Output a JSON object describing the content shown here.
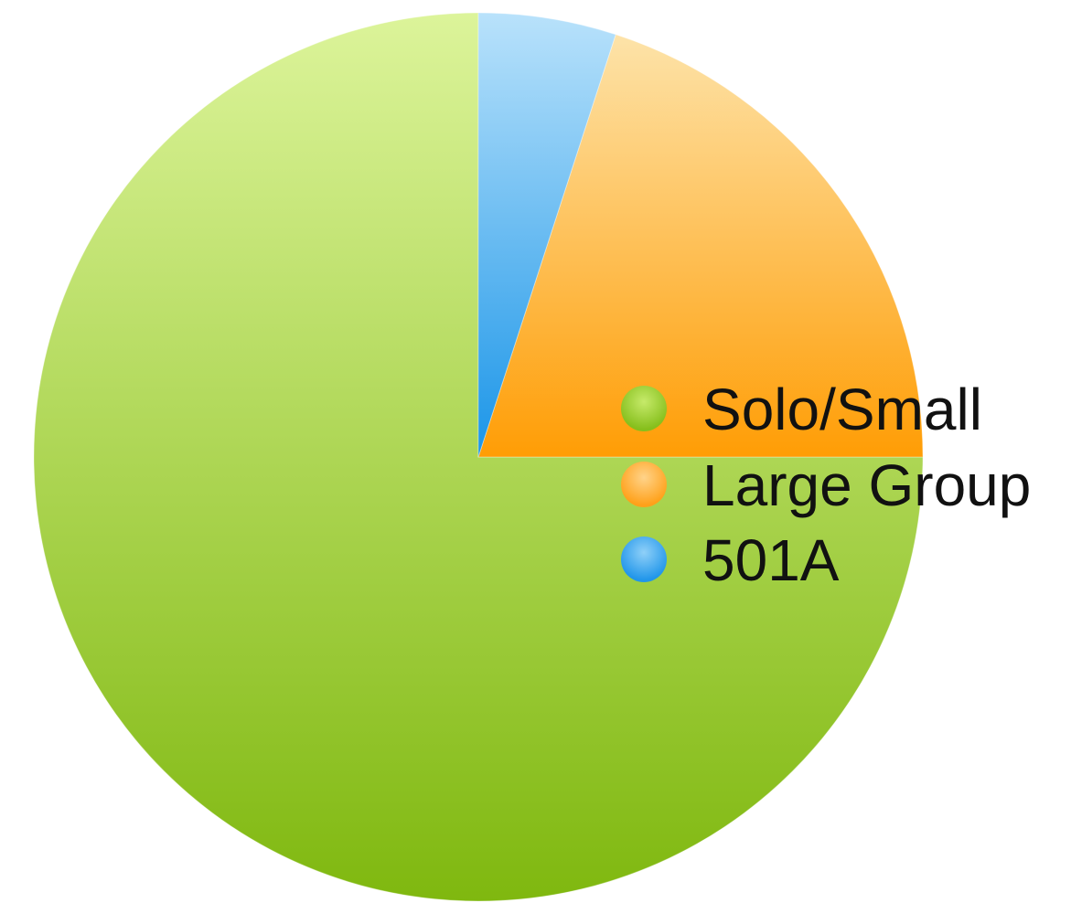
{
  "chart_data": {
    "type": "pie",
    "title": "",
    "slices": [
      {
        "label": "Solo/Small",
        "value": 75,
        "color": "#8cc21e"
      },
      {
        "label": "Large Group",
        "value": 20,
        "color": "#ffa71c"
      },
      {
        "label": "501A",
        "value": 5,
        "color": "#2ea2ec"
      }
    ],
    "start_angle_deg": 0,
    "direction": "counterclockwise-from-top",
    "legend": {
      "placement": "right",
      "entries": [
        "Solo/Small",
        "Large Group",
        "501A"
      ]
    }
  }
}
